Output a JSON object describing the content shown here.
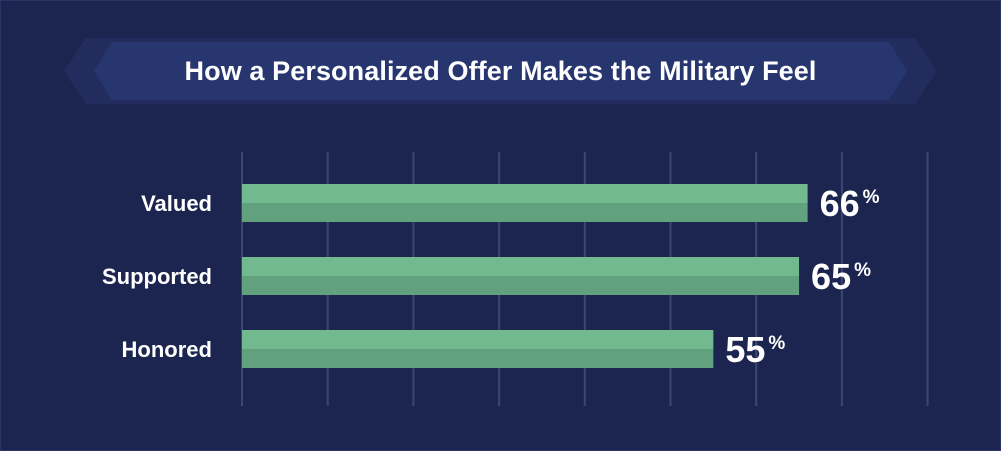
{
  "chart_data": {
    "type": "bar",
    "orientation": "horizontal",
    "title": "How a Personalized Offer Makes the Military Feel",
    "categories": [
      "Valued",
      "Supported",
      "Honored"
    ],
    "values": [
      66,
      65,
      55
    ],
    "value_labels": [
      "66",
      "65",
      "55"
    ],
    "unit": "%",
    "xlim": [
      0,
      80
    ],
    "grid": true,
    "colors": {
      "background": "#1c2550",
      "banner": "#283670",
      "bar_top": "#72b98f",
      "bar_bottom": "#62a17e",
      "grid": "#3a4673",
      "text": "#ffffff"
    }
  }
}
